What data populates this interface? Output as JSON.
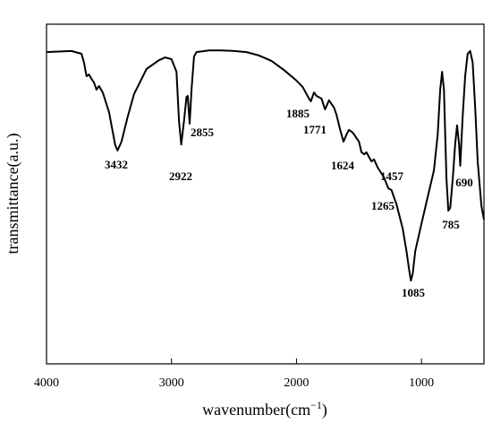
{
  "chart_data": {
    "type": "line",
    "x_label": [
      "wavenumber(cm",
      "−1",
      ")"
    ],
    "y_label": "transmittance(a.u.)",
    "xlim": [
      4000,
      500
    ],
    "ylim": [
      0,
      100
    ],
    "xticks": [
      4000,
      3000,
      2000,
      1000
    ],
    "color": "#000000",
    "x": [
      4000,
      3800,
      3720,
      3700,
      3680,
      3660,
      3640,
      3620,
      3600,
      3580,
      3550,
      3500,
      3450,
      3432,
      3400,
      3350,
      3300,
      3200,
      3100,
      3050,
      3000,
      2960,
      2940,
      2922,
      2900,
      2880,
      2870,
      2855,
      2840,
      2820,
      2800,
      2700,
      2600,
      2500,
      2400,
      2300,
      2200,
      2100,
      2000,
      1950,
      1900,
      1885,
      1860,
      1840,
      1800,
      1771,
      1740,
      1700,
      1680,
      1650,
      1624,
      1600,
      1580,
      1550,
      1500,
      1480,
      1457,
      1440,
      1420,
      1400,
      1380,
      1350,
      1300,
      1265,
      1240,
      1200,
      1150,
      1120,
      1100,
      1085,
      1070,
      1050,
      1000,
      950,
      900,
      870,
      850,
      835,
      820,
      810,
      800,
      785,
      770,
      750,
      730,
      715,
      700,
      690,
      670,
      650,
      630,
      610,
      590,
      570,
      550,
      520,
      500
    ],
    "values": [
      91.8,
      92.1,
      91.3,
      88.7,
      84.7,
      85.2,
      83.9,
      82.8,
      80.7,
      81.8,
      79.9,
      74.1,
      64.4,
      62.8,
      65.4,
      72.8,
      79.4,
      86.8,
      89.4,
      90.2,
      89.7,
      86.0,
      71.5,
      64.6,
      71.5,
      78.6,
      78.9,
      70.7,
      80.7,
      90.5,
      91.8,
      92.3,
      92.3,
      92.1,
      91.8,
      90.8,
      89.2,
      86.5,
      83.4,
      81.5,
      78.1,
      77.3,
      79.9,
      78.9,
      78.1,
      74.9,
      77.6,
      75.5,
      73.4,
      68.9,
      65.4,
      67.5,
      68.9,
      68.1,
      65.4,
      62.3,
      61.7,
      62.3,
      60.9,
      59.6,
      60.2,
      57.8,
      54.9,
      51.7,
      51.2,
      47.0,
      39.8,
      33.2,
      28.0,
      24.5,
      26.6,
      33.2,
      41.2,
      49.1,
      57.0,
      67.5,
      80.7,
      86.0,
      80.7,
      67.5,
      54.4,
      45.1,
      45.9,
      54.4,
      64.9,
      70.2,
      64.9,
      58.3,
      72.8,
      84.7,
      91.3,
      92.1,
      88.7,
      75.5,
      59.6,
      46.4,
      42.5
    ],
    "peaks": [
      3432,
      2922,
      2855,
      1885,
      1771,
      1624,
      1457,
      1265,
      1085,
      785,
      690
    ]
  }
}
